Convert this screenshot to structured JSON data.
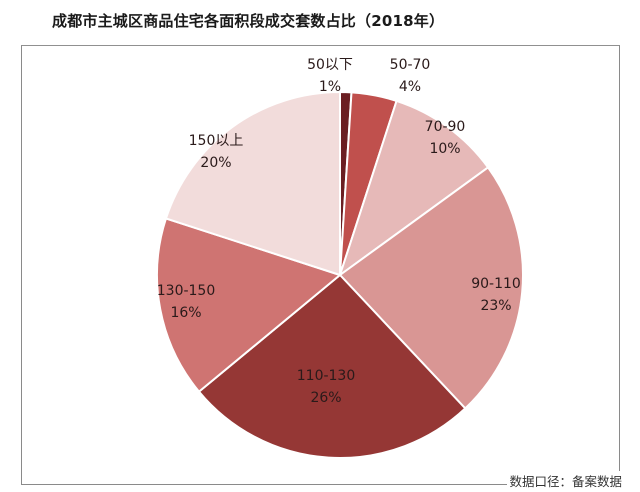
{
  "title": "成都市主城区商品住宅各面积段成交套数占比（2018年）",
  "source": "数据口径：备案数据",
  "chart_data": {
    "type": "pie",
    "title": "成都市主城区商品住宅各面积段成交套数占比（2018年）",
    "categories": [
      "50以下",
      "50-70",
      "70-90",
      "90-110",
      "110-130",
      "130-150",
      "150以上"
    ],
    "values": [
      1,
      4,
      10,
      23,
      26,
      16,
      20
    ],
    "unit": "%",
    "colors": [
      "#6b1e22",
      "#c0504d",
      "#e6b9b8",
      "#d99694",
      "#953735",
      "#cf7472",
      "#f2dcdb"
    ],
    "start_angle": "12 o'clock",
    "direction": "clockwise",
    "legend": "none (data labels on slices)",
    "source_note": "数据口径：备案数据"
  },
  "labels": [
    {
      "name": "50以下",
      "pct": "1%"
    },
    {
      "name": "50-70",
      "pct": "4%"
    },
    {
      "name": "70-90",
      "pct": "10%"
    },
    {
      "name": "90-110",
      "pct": "23%"
    },
    {
      "name": "110-130",
      "pct": "26%"
    },
    {
      "name": "130-150",
      "pct": "16%"
    },
    {
      "name": "150以上",
      "pct": "20%"
    }
  ]
}
